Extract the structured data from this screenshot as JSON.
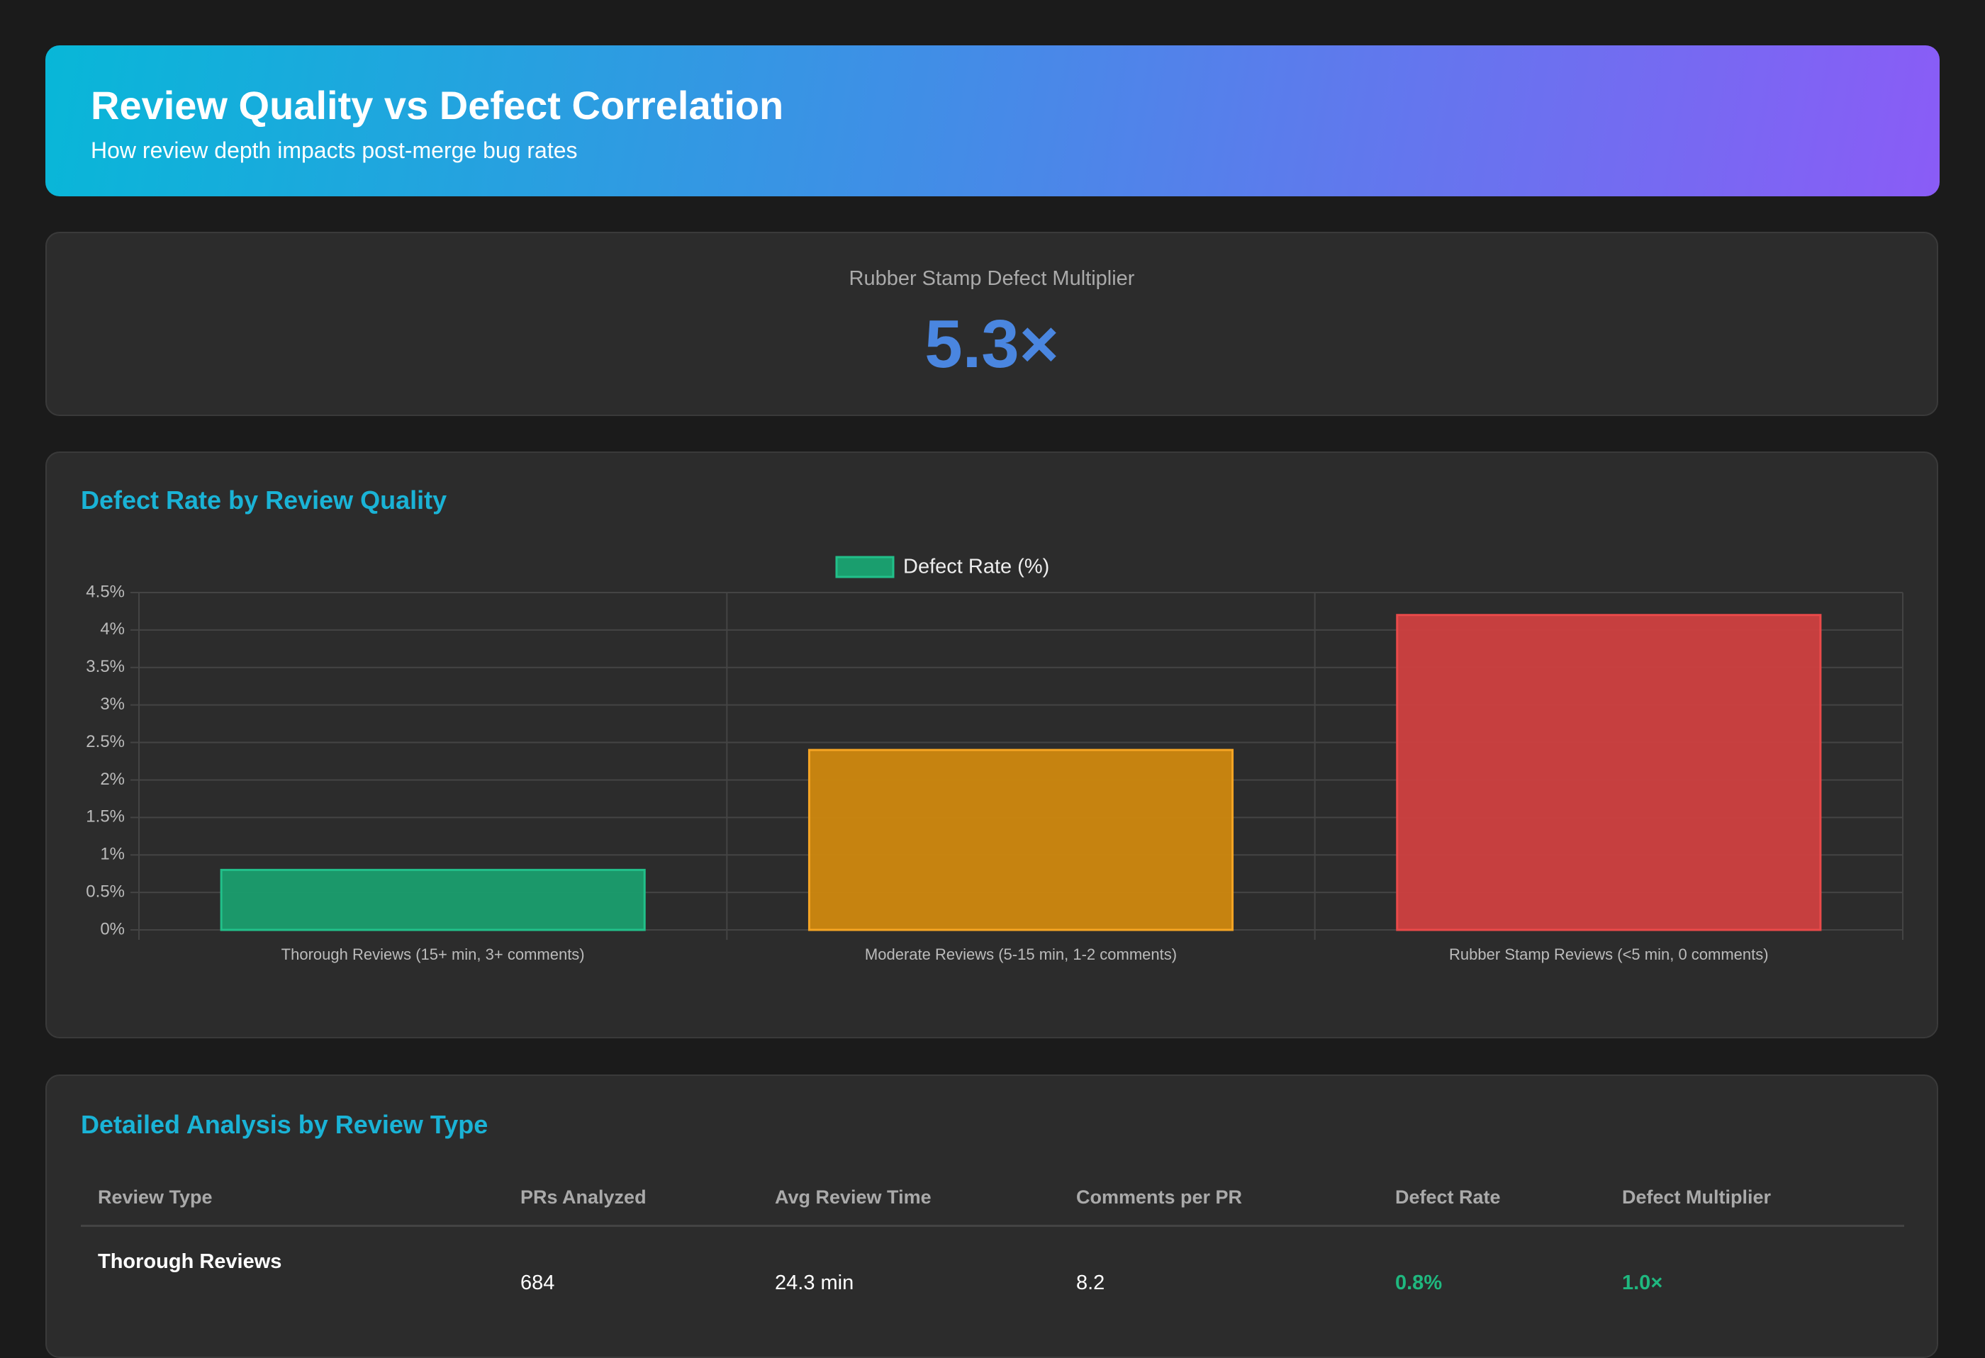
{
  "header": {
    "title": "Review Quality vs Defect Correlation",
    "subtitle": "How review depth impacts post-merge bug rates"
  },
  "kpi": {
    "label": "Rubber Stamp Defect Multiplier",
    "value": "5.3×"
  },
  "chart_data": {
    "type": "bar",
    "title": "Defect Rate by Review Quality",
    "categories": [
      "Thorough Reviews (15+ min, 3+ comments)",
      "Moderate Reviews (5-15 min, 1-2 comments)",
      "Rubber Stamp Reviews (<5 min, 0 comments)"
    ],
    "series": [
      {
        "name": "Defect Rate (%)",
        "values": [
          0.8,
          2.4,
          4.2
        ],
        "colors": [
          "#1a9e6e",
          "#cf880f",
          "#cf4040"
        ],
        "border_colors": [
          "#22c08a",
          "#f5a524",
          "#ea4a4a"
        ]
      }
    ],
    "ylim": [
      0,
      4.5
    ],
    "yticks": [
      {
        "value": 0,
        "label": "0%"
      },
      {
        "value": 0.5,
        "label": "0.5%"
      },
      {
        "value": 1,
        "label": "1%"
      },
      {
        "value": 1.5,
        "label": "1.5%"
      },
      {
        "value": 2,
        "label": "2%"
      },
      {
        "value": 2.5,
        "label": "2.5%"
      },
      {
        "value": 3,
        "label": "3%"
      },
      {
        "value": 3.5,
        "label": "3.5%"
      },
      {
        "value": 4,
        "label": "4%"
      },
      {
        "value": 4.5,
        "label": "4.5%"
      }
    ],
    "grid": true,
    "legend": "top"
  },
  "table": {
    "title": "Detailed Analysis by Review Type",
    "columns": [
      "Review Type",
      "PRs Analyzed",
      "Avg Review Time",
      "Comments per PR",
      "Defect Rate",
      "Defect Multiplier"
    ],
    "rows": [
      [
        "Thorough Reviews",
        "684",
        "24.3 min",
        "8.2",
        "0.8%",
        "1.0×"
      ]
    ]
  }
}
